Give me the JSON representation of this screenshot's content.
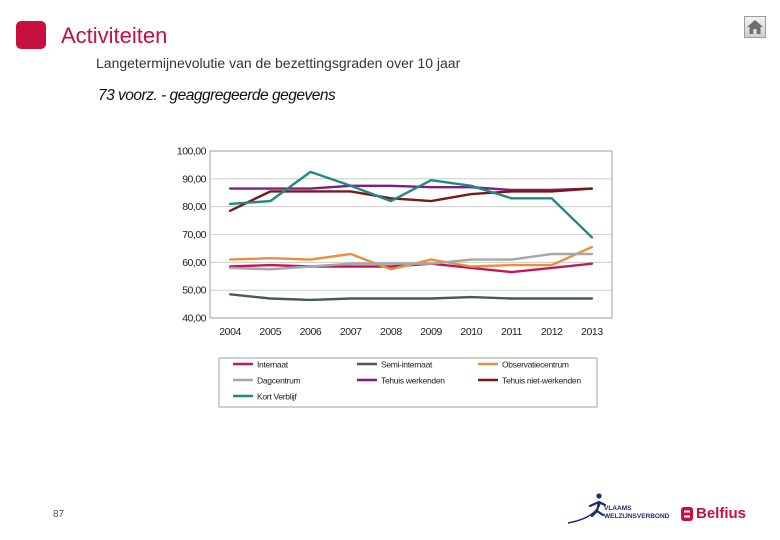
{
  "header": {
    "title": "Activiteiten",
    "subtitle": "Langetermijnevolutie van de bezettingsgraden over 10 jaar",
    "home_icon": "home-icon"
  },
  "chart_data": {
    "type": "line",
    "title": "73 voorz. - geaggregeerde gegevens",
    "xlabel": "",
    "ylabel": "",
    "ylim": [
      40,
      100
    ],
    "yticks": [
      "40,00",
      "50,00",
      "60,00",
      "70,00",
      "80,00",
      "90,00",
      "100,00"
    ],
    "grid": true,
    "legend_position": "bottom",
    "categories": [
      "2004",
      "2005",
      "2006",
      "2007",
      "2008",
      "2009",
      "2010",
      "2011",
      "2012",
      "2013"
    ],
    "series": [
      {
        "name": "Internaat",
        "color": "#c0185a",
        "values": [
          58.5,
          59,
          58.5,
          58.5,
          58.5,
          59.5,
          58,
          56.5,
          58,
          59.5
        ]
      },
      {
        "name": "Semi-internaat",
        "color": "#46595c",
        "values": [
          48.5,
          47,
          46.5,
          47,
          47,
          47,
          47.5,
          47,
          47,
          47
        ]
      },
      {
        "name": "Observatiecentrum",
        "color": "#e8913c",
        "values": [
          61,
          61.5,
          61,
          63,
          57.5,
          61,
          58.5,
          59,
          59,
          65.5
        ]
      },
      {
        "name": "Dagcentrum",
        "color": "#a6a6a6",
        "values": [
          58,
          57.5,
          58.5,
          59.5,
          59.5,
          59.5,
          61,
          61,
          63,
          63
        ]
      },
      {
        "name": "Tehuis werkenden",
        "color": "#7d1d83",
        "values": [
          86.5,
          86.5,
          86.5,
          87.5,
          87.5,
          87,
          87,
          86,
          86,
          86.5
        ]
      },
      {
        "name": "Tehuis niet-werkenden",
        "color": "#7a1717",
        "values": [
          78.5,
          85.5,
          85.5,
          85.5,
          83,
          82,
          84.5,
          85.5,
          85.5,
          86.5
        ]
      },
      {
        "name": "Kort Verblijf",
        "color": "#1f8a85",
        "values": [
          81,
          82,
          92.5,
          87.5,
          82,
          89.5,
          87.5,
          83,
          83,
          69
        ]
      }
    ]
  },
  "footer": {
    "page_number": "87",
    "vvsg_line1": "VLAAMS",
    "vvsg_line2": "WELZIJNSVERBOND",
    "belfius": "Belfius"
  }
}
